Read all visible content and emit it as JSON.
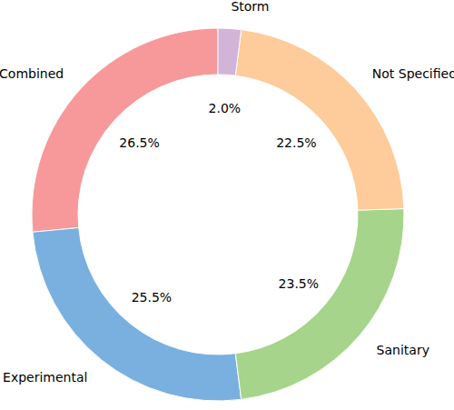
{
  "chart_data": {
    "type": "pie",
    "categories": [
      "Combined",
      "Experimental",
      "Sanitary",
      "Not Specified",
      "Storm"
    ],
    "values": [
      26.5,
      25.5,
      23.5,
      22.5,
      2.0
    ],
    "value_labels": [
      "26.5%",
      "25.5%",
      "23.5%",
      "22.5%",
      "2.0%"
    ],
    "colors": [
      "#f7999b",
      "#7ab0e0",
      "#a6d48a",
      "#fecb9a",
      "#d2b4d9"
    ],
    "data_labels": true
  }
}
